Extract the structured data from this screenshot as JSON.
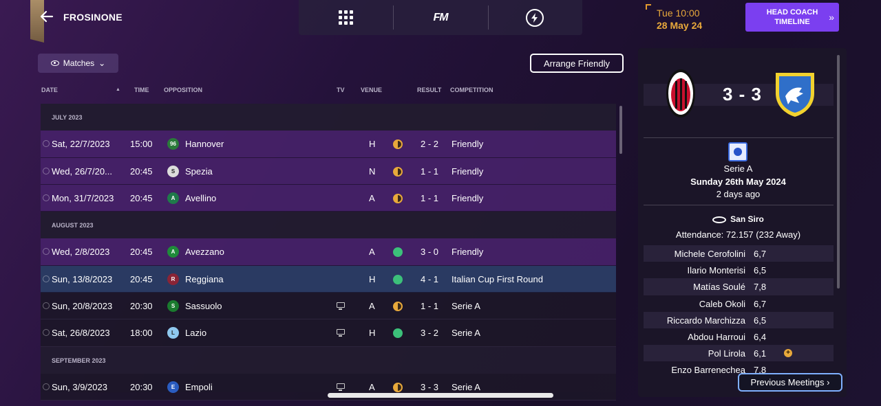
{
  "header": {
    "club_name": "FROSINONE",
    "time": "Tue 10:00",
    "date": "28 May 24",
    "head_coach_button": "HEAD COACH TIMELINE",
    "nav": [
      "grid",
      "FM",
      "bolt"
    ]
  },
  "toolbar": {
    "matches_label": "Matches",
    "arrange_friendly_label": "Arrange Friendly"
  },
  "columns": {
    "date": "DATE",
    "time": "TIME",
    "opposition": "OPPOSITION",
    "tv": "TV",
    "venue": "VENUE",
    "result": "RESULT",
    "competition": "COMPETITION"
  },
  "fixtures": {
    "sections": [
      "JULY 2023",
      "AUGUST 2023",
      "SEPTEMBER 2023"
    ],
    "rows": [
      {
        "date": "Sat, 22/7/2023",
        "time": "15:00",
        "opposition": "Hannover",
        "tv": false,
        "venue": "H",
        "outcome": "draw",
        "result": "2 - 2",
        "competition": "Friendly",
        "badge_color": "#2a7a3a",
        "badge_text": "96"
      },
      {
        "date": "Wed, 26/7/20...",
        "time": "20:45",
        "opposition": "Spezia",
        "tv": false,
        "venue": "N",
        "outcome": "draw",
        "result": "1 - 1",
        "competition": "Friendly",
        "badge_color": "#dcdcdc",
        "badge_text": "S"
      },
      {
        "date": "Mon, 31/7/2023",
        "time": "20:45",
        "opposition": "Avellino",
        "tv": false,
        "venue": "A",
        "outcome": "draw",
        "result": "1 - 1",
        "competition": "Friendly",
        "badge_color": "#1f7a4a",
        "badge_text": "A"
      },
      {
        "date": "Wed, 2/8/2023",
        "time": "20:45",
        "opposition": "Avezzano",
        "tv": false,
        "venue": "A",
        "outcome": "win",
        "result": "3 - 0",
        "competition": "Friendly",
        "badge_color": "#1f8a3a",
        "badge_text": "A"
      },
      {
        "date": "Sun, 13/8/2023",
        "time": "20:45",
        "opposition": "Reggiana",
        "tv": false,
        "venue": "H",
        "outcome": "win",
        "result": "4 - 1",
        "competition": "Italian Cup First Round",
        "badge_color": "#8a2436",
        "badge_text": "R"
      },
      {
        "date": "Sun, 20/8/2023",
        "time": "20:30",
        "opposition": "Sassuolo",
        "tv": true,
        "venue": "A",
        "outcome": "draw",
        "result": "1 - 1",
        "competition": "Serie A",
        "badge_color": "#1a7a2e",
        "badge_text": "S"
      },
      {
        "date": "Sat, 26/8/2023",
        "time": "18:00",
        "opposition": "Lazio",
        "tv": true,
        "venue": "H",
        "outcome": "win",
        "result": "3 - 2",
        "competition": "Serie A",
        "badge_color": "#8fc8ee",
        "badge_text": "L"
      },
      {
        "date": "Sun, 3/9/2023",
        "time": "20:30",
        "opposition": "Empoli",
        "tv": true,
        "venue": "A",
        "outcome": "draw",
        "result": "3 - 3",
        "competition": "Serie A",
        "badge_color": "#2a5cc0",
        "badge_text": "E"
      }
    ]
  },
  "match_panel": {
    "score": "3 - 3",
    "competition": "Serie A",
    "match_date": "Sunday 26th May 2024",
    "relative": "2 days ago",
    "venue": "San Siro",
    "attendance": "Attendance: 72.157 (232 Away)",
    "players": [
      {
        "name": "Michele Cerofolini",
        "rating": "6,7",
        "icon": ""
      },
      {
        "name": "Ilario Monterisi",
        "rating": "6,5",
        "icon": ""
      },
      {
        "name": "Matías Soulé",
        "rating": "7,8",
        "icon": ""
      },
      {
        "name": "Caleb Okoli",
        "rating": "6,7",
        "icon": ""
      },
      {
        "name": "Riccardo Marchizza",
        "rating": "6,5",
        "icon": ""
      },
      {
        "name": "Abdou Harroui",
        "rating": "6,4",
        "icon": ""
      },
      {
        "name": "Pol Lirola",
        "rating": "6,1",
        "icon": "+"
      },
      {
        "name": "Enzo Barrenechea",
        "rating": "7,8",
        "icon": ""
      }
    ],
    "previous_meetings_label": "Previous Meetings ›"
  },
  "colors": {
    "accent": "#7b3ff0",
    "draw": "#e8a93b",
    "win": "#3cc07a",
    "row_purple": "#4a226e",
    "row_selected": "#2a3a62"
  }
}
